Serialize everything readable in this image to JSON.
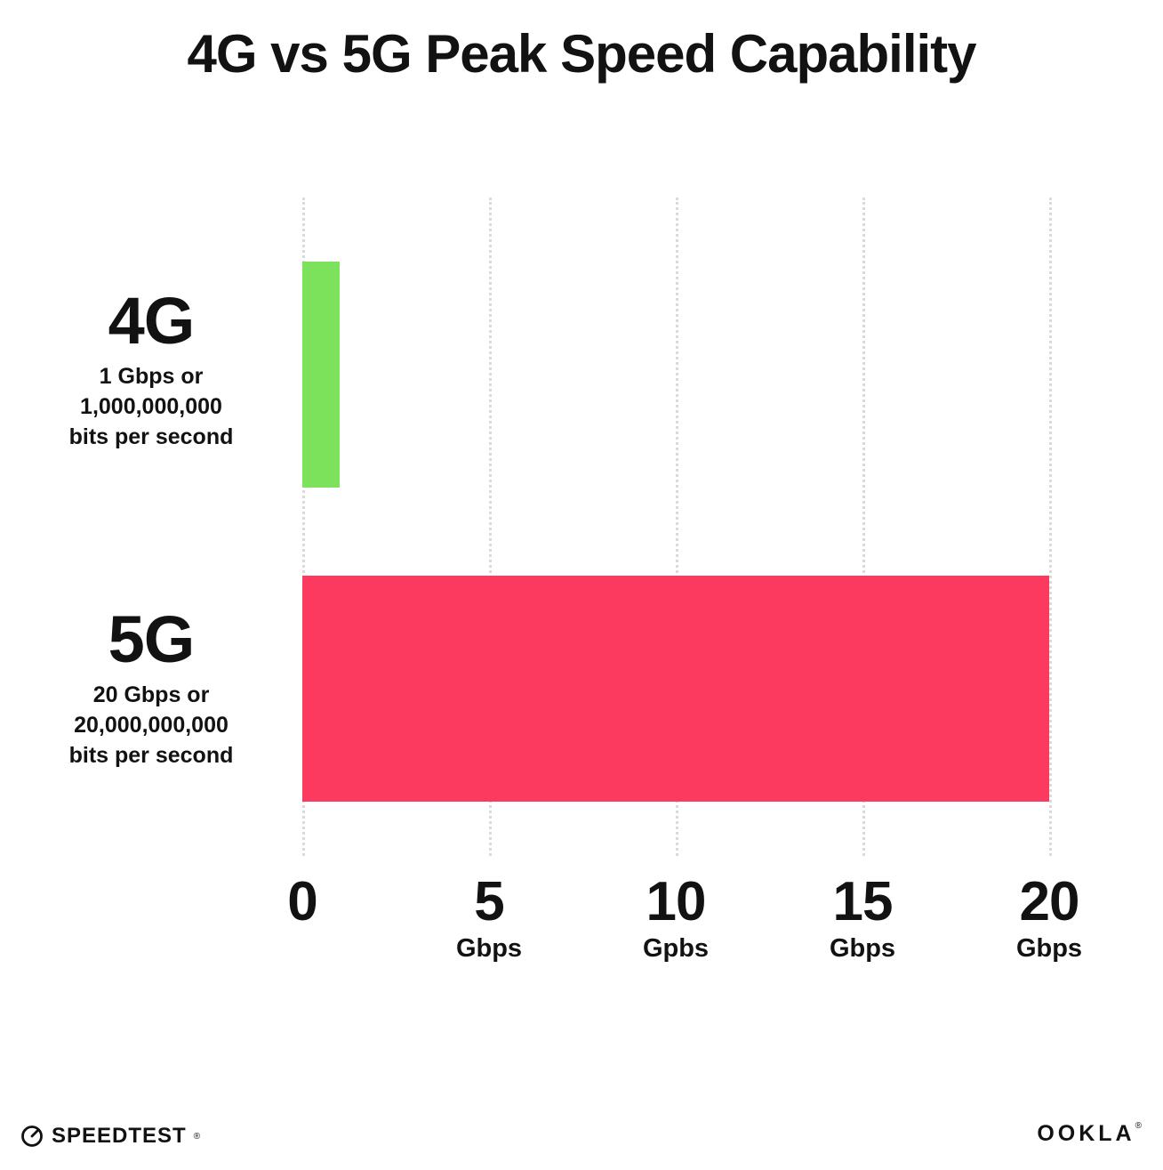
{
  "title": "4G vs 5G Peak Speed Capability",
  "colors": {
    "bar_4g": "#7CE25C",
    "bar_5g": "#FC3A5F",
    "gridline": "#DADADA",
    "text": "#121212"
  },
  "categories": [
    {
      "name": "4G",
      "desc_lines": [
        "1 Gbps or",
        "1,000,000,000",
        "bits per second"
      ]
    },
    {
      "name": "5G",
      "desc_lines": [
        "20 Gbps or",
        "20,000,000,000",
        "bits per second"
      ]
    }
  ],
  "axis": {
    "ticks": [
      {
        "value": "0",
        "unit": ""
      },
      {
        "value": "5",
        "unit": "Gbps"
      },
      {
        "value": "10",
        "unit": "Gpbs"
      },
      {
        "value": "15",
        "unit": "Gbps"
      },
      {
        "value": "20",
        "unit": "Gbps"
      }
    ]
  },
  "footer": {
    "speedtest": "SPEEDTEST",
    "speedtest_mark": "®",
    "ookla": "OOKLA",
    "ookla_mark": "®"
  },
  "chart_data": {
    "type": "bar",
    "orientation": "horizontal",
    "title": "4G vs 5G Peak Speed Capability",
    "categories": [
      "4G",
      "5G"
    ],
    "values": [
      1,
      20
    ],
    "xlabel": "Gbps",
    "ylabel": "",
    "xlim": [
      0,
      20
    ],
    "xticks": [
      0,
      5,
      10,
      15,
      20
    ],
    "grid": true,
    "legend": false,
    "annotations": [
      "4G: 1 Gbps or 1,000,000,000 bits per second",
      "5G: 20 Gbps or 20,000,000,000 bits per second"
    ]
  }
}
